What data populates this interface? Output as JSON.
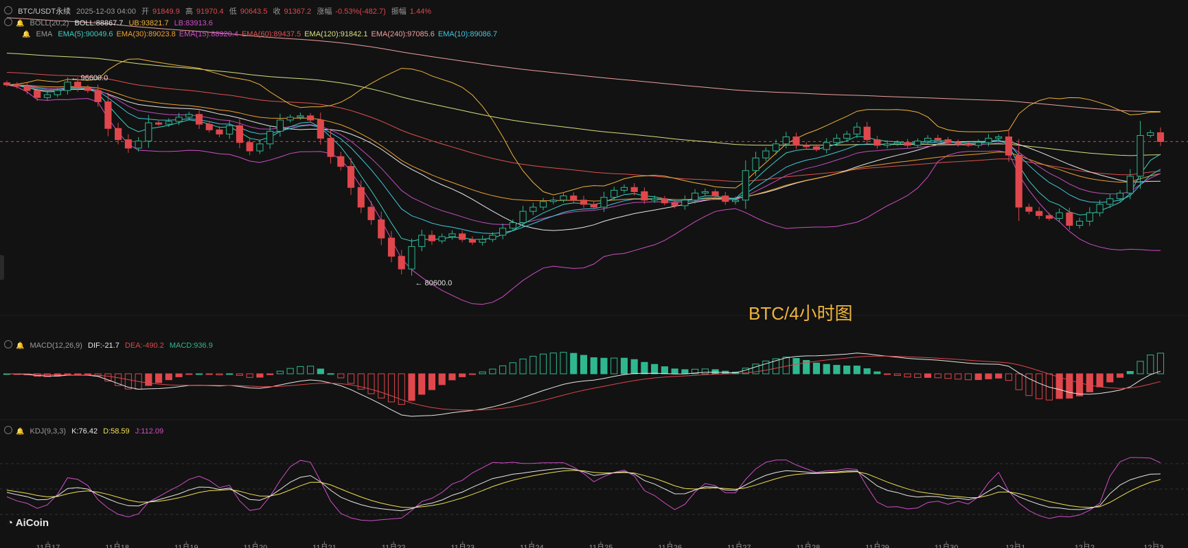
{
  "header": {
    "symbol": "BTC/USDT永续",
    "time": "2025-12-03 04:00",
    "open_label": "开",
    "open": "91849.9",
    "high_label": "高",
    "high": "91970.4",
    "low_label": "低",
    "low": "90643.5",
    "close_label": "收",
    "close": "91367.2",
    "change_label": "涨幅",
    "change": "-0.53%(-482.7)",
    "amp_label": "振幅",
    "amp": "1.44%"
  },
  "boll": {
    "name": "BOLL(20,2)",
    "mid": "BOLL:88867.7",
    "ub": "UB:93821.7",
    "lb": "LB:83913.6"
  },
  "ema": {
    "name": "EMA",
    "items": [
      {
        "label": "EMA(5):90049.6",
        "color": "#3fd0c4"
      },
      {
        "label": "EMA(30):89023.8",
        "color": "#f0a030"
      },
      {
        "label": "EMA(15):88920.4",
        "color": "#d04fc8"
      },
      {
        "label": "EMA(60):89437.5",
        "color": "#e05050"
      },
      {
        "label": "EMA(120):91842.1",
        "color": "#d8e080"
      },
      {
        "label": "EMA(240):97085.6",
        "color": "#f0a0a0"
      },
      {
        "label": "EMA(10):89086.7",
        "color": "#40c8e0"
      }
    ]
  },
  "macd": {
    "name": "MACD(12,26,9)",
    "dif": "DIF:-21.7",
    "dea": "DEA:-490.2",
    "macd": "MACD:936.9"
  },
  "kdj": {
    "name": "KDJ(9,3,3)",
    "k": "K:76.42",
    "d": "D:58.59",
    "j": "J:112.09"
  },
  "annotations": {
    "high_mark": "96600.0",
    "low_mark": "80600.0"
  },
  "watermark": "BTC/4小时图",
  "logo": "AiCoin",
  "colors": {
    "up": "#2fb890",
    "down": "#e0474c",
    "bg": "#121212"
  },
  "chart_data": {
    "type": "candlestick",
    "title": "BTC/USDT永续 4H",
    "x_ticks": [
      "11月17",
      "11月18",
      "11月19",
      "11月20",
      "11月21",
      "11月22",
      "11月23",
      "11月24",
      "11月25",
      "11月26",
      "11月27",
      "11月28",
      "11月29",
      "11月30",
      "12月1",
      "12月2",
      "12月3"
    ],
    "y_range": [
      78500,
      99000
    ],
    "current_price": 91367.2,
    "close": [
      95400,
      95300,
      95000,
      94500,
      94700,
      95000,
      95600,
      95200,
      95000,
      94200,
      92300,
      91500,
      90900,
      91400,
      92700,
      92600,
      92800,
      93100,
      93300,
      92600,
      92200,
      91900,
      92500,
      91300,
      90700,
      91200,
      92100,
      92900,
      93100,
      93200,
      92900,
      91600,
      90300,
      89600,
      88100,
      86700,
      85800,
      84500,
      83200,
      82300,
      83900,
      84700,
      84300,
      84600,
      84800,
      84400,
      84200,
      84400,
      84700,
      85200,
      85600,
      86400,
      86700,
      87100,
      87200,
      87500,
      87200,
      86900,
      86700,
      87400,
      87900,
      88100,
      87800,
      87200,
      87300,
      87000,
      86800,
      87200,
      87700,
      87800,
      87500,
      87100,
      87200,
      89300,
      90200,
      90700,
      91200,
      91700,
      91100,
      91000,
      90800,
      91300,
      91600,
      91900,
      92400,
      91500,
      91100,
      91200,
      91300,
      91100,
      91400,
      91600,
      91500,
      91300,
      91200,
      91100,
      91300,
      91600,
      91700,
      90400,
      86700,
      86400,
      86100,
      85900,
      86300,
      85400,
      85700,
      86300,
      86900,
      87300,
      87700,
      88900,
      91800,
      92000,
      91367.2
    ]
  }
}
